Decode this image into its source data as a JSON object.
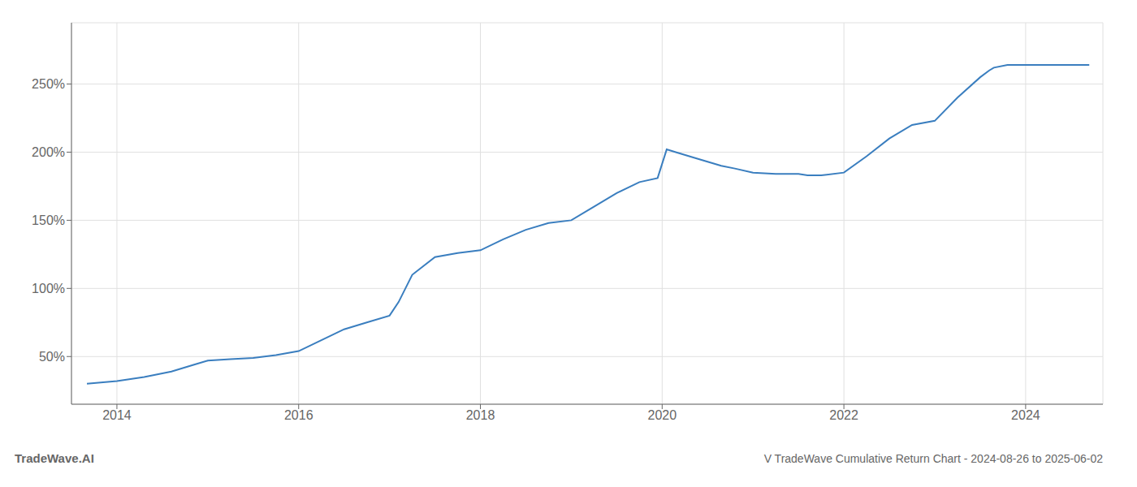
{
  "chart_data": {
    "type": "line",
    "title": "V TradeWave Cumulative Return Chart - 2024-08-26 to 2025-06-02",
    "annotations": [
      "TradeWave.AI"
    ],
    "grid": true,
    "xlim": [
      2013.5,
      2024.85
    ],
    "xticks": [
      2014,
      2016,
      2018,
      2020,
      2022,
      2024
    ],
    "ylim": [
      15,
      295
    ],
    "yticks": [
      {
        "value": 50,
        "label": "50%"
      },
      {
        "value": 100,
        "label": "100%"
      },
      {
        "value": 150,
        "label": "150%"
      },
      {
        "value": 200,
        "label": "200%"
      },
      {
        "value": 250,
        "label": "250%"
      }
    ],
    "color": "#3a7ebf",
    "x": [
      2013.67,
      2014.0,
      2014.3,
      2014.6,
      2014.85,
      2015.0,
      2015.25,
      2015.5,
      2015.75,
      2016.0,
      2016.25,
      2016.5,
      2016.75,
      2017.0,
      2017.1,
      2017.25,
      2017.5,
      2017.75,
      2018.0,
      2018.25,
      2018.5,
      2018.75,
      2019.0,
      2019.25,
      2019.5,
      2019.75,
      2019.95,
      2020.05,
      2020.15,
      2020.35,
      2020.5,
      2020.65,
      2020.8,
      2021.0,
      2021.25,
      2021.5,
      2021.6,
      2021.75,
      2022.0,
      2022.25,
      2022.5,
      2022.75,
      2023.0,
      2023.25,
      2023.5,
      2023.6,
      2023.65,
      2023.8,
      2024.0,
      2024.2,
      2024.5,
      2024.7
    ],
    "values": [
      30,
      32,
      35,
      39,
      44,
      47,
      48,
      49,
      51,
      54,
      62,
      70,
      75,
      80,
      90,
      110,
      123,
      126,
      128,
      136,
      143,
      148,
      150,
      160,
      170,
      178,
      181,
      202,
      200,
      196,
      193,
      190,
      188,
      185,
      184,
      184,
      183,
      183,
      185,
      197,
      210,
      220,
      223,
      240,
      255,
      260,
      262,
      264,
      264,
      264,
      264,
      264
    ]
  }
}
